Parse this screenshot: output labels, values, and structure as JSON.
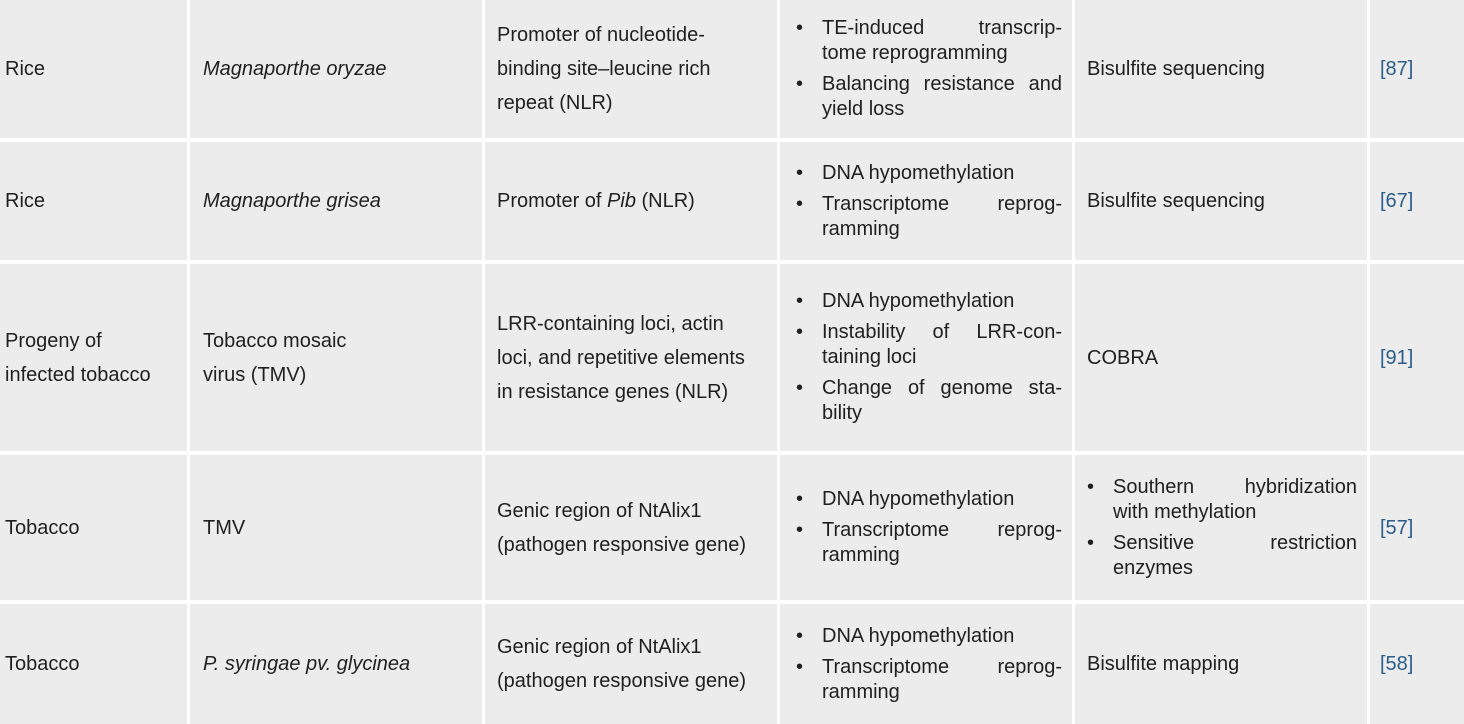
{
  "rows": [
    {
      "host": "Rice",
      "pathogen": "Magnaporthe oryzae",
      "target": [
        "Promoter of nucleotide-",
        "binding site–leucine rich",
        "repeat (NLR)"
      ],
      "effects": [
        [
          "TE-induced transcrip-",
          "tome reprogramming"
        ],
        [
          "Balancing resistance and",
          "yield loss"
        ]
      ],
      "method": "Bisulfite sequencing",
      "ref": "[87]"
    },
    {
      "host": "Rice",
      "pathogen": "Magnaporthe grisea",
      "target_prefix": "Promoter of ",
      "target_italic": "Pib",
      "target_suffix": " (NLR)",
      "effects": [
        [
          "DNA hypomethylation"
        ],
        [
          "Transcriptome reprog-",
          "ramming"
        ]
      ],
      "method": "Bisulfite sequencing",
      "ref": "[67]"
    },
    {
      "host": [
        "Progeny of",
        "infected tobacco"
      ],
      "pathogen": [
        "Tobacco mosaic",
        "virus (TMV)"
      ],
      "target": [
        "LRR-containing loci, actin",
        "loci, and repetitive elements",
        "in resistance genes (NLR)"
      ],
      "effects": [
        [
          "DNA hypomethylation"
        ],
        [
          "Instability of LRR-con-",
          "taining loci"
        ],
        [
          "Change of genome sta-",
          "bility"
        ]
      ],
      "method": "COBRA",
      "ref": "[91]"
    },
    {
      "host": "Tobacco",
      "pathogen": "TMV",
      "target": [
        "Genic region of NtAlix1",
        "(pathogen responsive gene)"
      ],
      "effects": [
        [
          "DNA hypomethylation"
        ],
        [
          "Transcriptome reprog-",
          "ramming"
        ]
      ],
      "method_list": [
        [
          "Southern hybridization",
          "with methylation"
        ],
        [
          "Sensitive restriction",
          "enzymes"
        ]
      ],
      "ref": "[57]"
    },
    {
      "host": "Tobacco",
      "pathogen": "P. syringae pv. glycinea",
      "target": [
        "Genic region of NtAlix1",
        "(pathogen responsive gene)"
      ],
      "effects": [
        [
          "DNA hypomethylation"
        ],
        [
          "Transcriptome reprog-",
          "ramming"
        ]
      ],
      "method": "Bisulfite mapping",
      "ref": "[58]"
    }
  ]
}
